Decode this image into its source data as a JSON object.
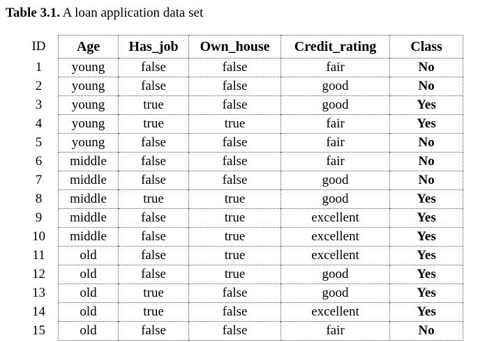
{
  "caption": {
    "label": "Table 3.1.",
    "text": "A loan application data set"
  },
  "columns": [
    "ID",
    "Age",
    "Has_job",
    "Own_house",
    "Credit_rating",
    "Class"
  ],
  "rows": [
    [
      "1",
      "young",
      "false",
      "false",
      "fair",
      "No"
    ],
    [
      "2",
      "young",
      "false",
      "false",
      "good",
      "No"
    ],
    [
      "3",
      "young",
      "true",
      "false",
      "good",
      "Yes"
    ],
    [
      "4",
      "young",
      "true",
      "true",
      "fair",
      "Yes"
    ],
    [
      "5",
      "young",
      "false",
      "false",
      "fair",
      "No"
    ],
    [
      "6",
      "middle",
      "false",
      "false",
      "fair",
      "No"
    ],
    [
      "7",
      "middle",
      "false",
      "false",
      "good",
      "No"
    ],
    [
      "8",
      "middle",
      "true",
      "true",
      "good",
      "Yes"
    ],
    [
      "9",
      "middle",
      "false",
      "true",
      "excellent",
      "Yes"
    ],
    [
      "10",
      "middle",
      "false",
      "true",
      "excellent",
      "Yes"
    ],
    [
      "11",
      "old",
      "false",
      "true",
      "excellent",
      "Yes"
    ],
    [
      "12",
      "old",
      "false",
      "true",
      "good",
      "Yes"
    ],
    [
      "13",
      "old",
      "true",
      "false",
      "good",
      "Yes"
    ],
    [
      "14",
      "old",
      "true",
      "false",
      "excellent",
      "Yes"
    ],
    [
      "15",
      "old",
      "false",
      "false",
      "fair",
      "No"
    ]
  ]
}
